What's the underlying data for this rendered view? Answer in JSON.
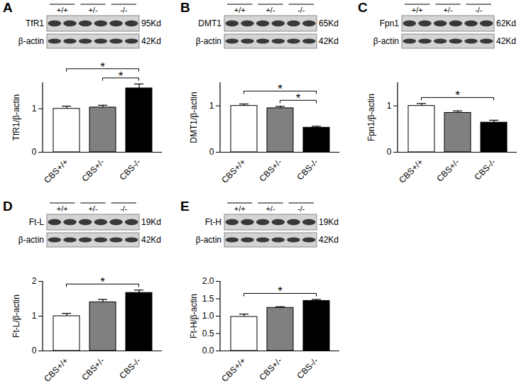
{
  "chart_data": [
    {
      "type": "bar",
      "ylabel": "TfR1/β-actin",
      "categories": [
        "CBS+/+",
        "CBS+/-",
        "CBS-/-"
      ],
      "values": [
        1.0,
        1.03,
        1.47
      ],
      "errors": [
        0.06,
        0.05,
        0.1
      ],
      "colors": [
        "#ffffff",
        "#808080",
        "#000000"
      ],
      "ylim": [
        0,
        1.6
      ],
      "yticks": [
        0,
        1
      ],
      "significance": [
        {
          "from": "CBS+/+",
          "to": "CBS-/-",
          "label": "*"
        },
        {
          "from": "CBS+/-",
          "to": "CBS-/-",
          "label": "*"
        }
      ]
    },
    {
      "type": "bar",
      "ylabel": "DMT1/β-actin",
      "categories": [
        "CBS+/+",
        "CBS+/-",
        "CBS-/-"
      ],
      "values": [
        1.0,
        0.95,
        0.53
      ],
      "errors": [
        0.04,
        0.04,
        0.03
      ],
      "colors": [
        "#ffffff",
        "#808080",
        "#000000"
      ],
      "ylim": [
        0,
        1.5
      ],
      "yticks": [
        0,
        1
      ],
      "significance": [
        {
          "from": "CBS+/+",
          "to": "CBS-/-",
          "label": "*"
        },
        {
          "from": "CBS+/-",
          "to": "CBS-/-",
          "label": "*"
        }
      ]
    },
    {
      "type": "bar",
      "ylabel": "Fpn1/β-actin",
      "categories": [
        "CBS+/+",
        "CBS+/-",
        "CBS-/-"
      ],
      "values": [
        1.0,
        0.85,
        0.64
      ],
      "errors": [
        0.05,
        0.04,
        0.05
      ],
      "colors": [
        "#ffffff",
        "#808080",
        "#000000"
      ],
      "ylim": [
        0,
        1.5
      ],
      "yticks": [
        0,
        1
      ],
      "significance": [
        {
          "from": "CBS+/+",
          "to": "CBS-/-",
          "label": "*"
        }
      ]
    },
    {
      "type": "bar",
      "ylabel": "Ft-L/β-actin",
      "categories": [
        "CBS+/+",
        "CBS+/-",
        "CBS-/-"
      ],
      "values": [
        1.0,
        1.4,
        1.67
      ],
      "errors": [
        0.08,
        0.08,
        0.08
      ],
      "colors": [
        "#ffffff",
        "#808080",
        "#000000"
      ],
      "ylim": [
        0,
        2
      ],
      "yticks": [
        0,
        1,
        2
      ],
      "significance": [
        {
          "from": "CBS+/+",
          "to": "CBS-/-",
          "label": "*"
        }
      ]
    },
    {
      "type": "bar",
      "ylabel": "Ft-H/β-actin",
      "categories": [
        "CBS+/+",
        "CBS+/-",
        "CBS-/-"
      ],
      "values": [
        0.98,
        1.24,
        1.44
      ],
      "errors": [
        0.08,
        0.03,
        0.04
      ],
      "colors": [
        "#ffffff",
        "#808080",
        "#000000"
      ],
      "ylim": [
        0,
        2
      ],
      "yticks": [
        {
          "value": 0,
          "label": "0.0"
        },
        {
          "value": 0.5,
          "label": "0.5"
        },
        {
          "value": 1,
          "label": "1.0"
        },
        {
          "value": 1.5,
          "label": "1.5"
        },
        {
          "value": 2,
          "label": "2.0"
        }
      ],
      "significance": [
        {
          "from": "CBS+/+",
          "to": "CBS-/-",
          "label": "*"
        }
      ]
    }
  ],
  "panels": [
    {
      "letter": "A",
      "blot": {
        "groups": [
          "+/+",
          "+/-",
          "-/-"
        ],
        "rows": [
          {
            "protein": "TfR1",
            "size": "95Kd"
          },
          {
            "protein": "β-actin",
            "size": "42Kd"
          }
        ]
      }
    },
    {
      "letter": "B",
      "blot": {
        "groups": [
          "+/+",
          "+/-",
          "-/-"
        ],
        "rows": [
          {
            "protein": "DMT1",
            "size": "65Kd"
          },
          {
            "protein": "β-actin",
            "size": "42Kd"
          }
        ]
      }
    },
    {
      "letter": "C",
      "blot": {
        "groups": [
          "+/+",
          "+/-",
          "-/-"
        ],
        "rows": [
          {
            "protein": "Fpn1",
            "size": "62Kd"
          },
          {
            "protein": "β-actin",
            "size": "42Kd"
          }
        ]
      }
    },
    {
      "letter": "D",
      "blot": {
        "groups": [
          "+/+",
          "+/-",
          "-/-"
        ],
        "rows": [
          {
            "protein": "Ft-L",
            "size": "19Kd"
          },
          {
            "protein": "β-actin",
            "size": "42Kd"
          }
        ]
      }
    },
    {
      "letter": "E",
      "blot": {
        "groups": [
          "+/+",
          "+/-",
          "-/-"
        ],
        "rows": [
          {
            "protein": "Ft-H",
            "size": "19Kd"
          },
          {
            "protein": "β-actin",
            "size": "42Kd"
          }
        ]
      }
    }
  ]
}
